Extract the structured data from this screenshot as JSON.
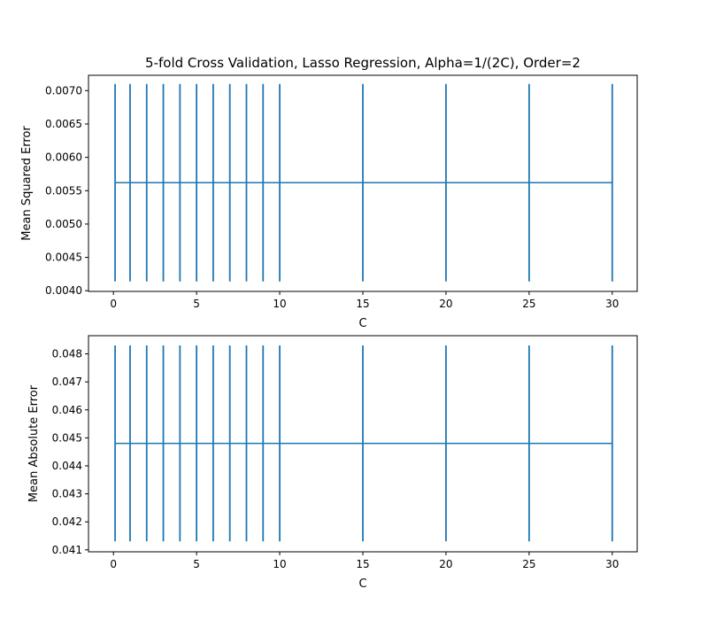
{
  "figure": {
    "title": "5-fold Cross Validation, Lasso Regression, Alpha=1/(2C), Order=2"
  },
  "colors": {
    "series": "#1f77b4",
    "axes": "#000000",
    "background": "#ffffff"
  },
  "chart_data": [
    {
      "type": "errorbar",
      "xlabel": "C",
      "ylabel": "Mean Squared Error",
      "xlim": [
        -1.5,
        31.5
      ],
      "ylim": [
        0.00399,
        0.00723
      ],
      "xticks": [
        0,
        5,
        10,
        15,
        20,
        25,
        30
      ],
      "xtick_labels": [
        "0",
        "5",
        "10",
        "15",
        "20",
        "25",
        "30"
      ],
      "yticks": [
        0.004,
        0.0045,
        0.005,
        0.0055,
        0.006,
        0.0065,
        0.007
      ],
      "ytick_labels": [
        "0.0040",
        "0.0045",
        "0.0050",
        "0.0055",
        "0.0060",
        "0.0065",
        "0.0070"
      ],
      "x": [
        0.1,
        1,
        2,
        3,
        4,
        5,
        6,
        7,
        8,
        9,
        10,
        15,
        20,
        25,
        30
      ],
      "y": [
        0.00562,
        0.00562,
        0.00562,
        0.00562,
        0.00562,
        0.00562,
        0.00562,
        0.00562,
        0.00562,
        0.00562,
        0.00562,
        0.00562,
        0.00562,
        0.00562,
        0.00562
      ],
      "yerr": [
        0.00148,
        0.00148,
        0.00148,
        0.00148,
        0.00148,
        0.00148,
        0.00148,
        0.00148,
        0.00148,
        0.00148,
        0.00148,
        0.00148,
        0.00148,
        0.00148,
        0.00148
      ],
      "grid": false,
      "legend": "none"
    },
    {
      "type": "errorbar",
      "xlabel": "C",
      "ylabel": "Mean Absolute Error",
      "xlim": [
        -1.5,
        31.5
      ],
      "ylim": [
        0.04093,
        0.04865
      ],
      "xticks": [
        0,
        5,
        10,
        15,
        20,
        25,
        30
      ],
      "xtick_labels": [
        "0",
        "5",
        "10",
        "15",
        "20",
        "25",
        "30"
      ],
      "yticks": [
        0.041,
        0.042,
        0.043,
        0.044,
        0.045,
        0.046,
        0.047,
        0.048
      ],
      "ytick_labels": [
        "0.041",
        "0.042",
        "0.043",
        "0.044",
        "0.045",
        "0.046",
        "0.047",
        "0.048"
      ],
      "x": [
        0.1,
        1,
        2,
        3,
        4,
        5,
        6,
        7,
        8,
        9,
        10,
        15,
        20,
        25,
        30
      ],
      "y": [
        0.0448,
        0.0448,
        0.0448,
        0.0448,
        0.0448,
        0.0448,
        0.0448,
        0.0448,
        0.0448,
        0.0448,
        0.0448,
        0.0448,
        0.0448,
        0.0448,
        0.0448
      ],
      "yerr": [
        0.0035,
        0.0035,
        0.0035,
        0.0035,
        0.0035,
        0.0035,
        0.0035,
        0.0035,
        0.0035,
        0.0035,
        0.0035,
        0.0035,
        0.0035,
        0.0035,
        0.0035
      ],
      "grid": false,
      "legend": "none"
    }
  ]
}
